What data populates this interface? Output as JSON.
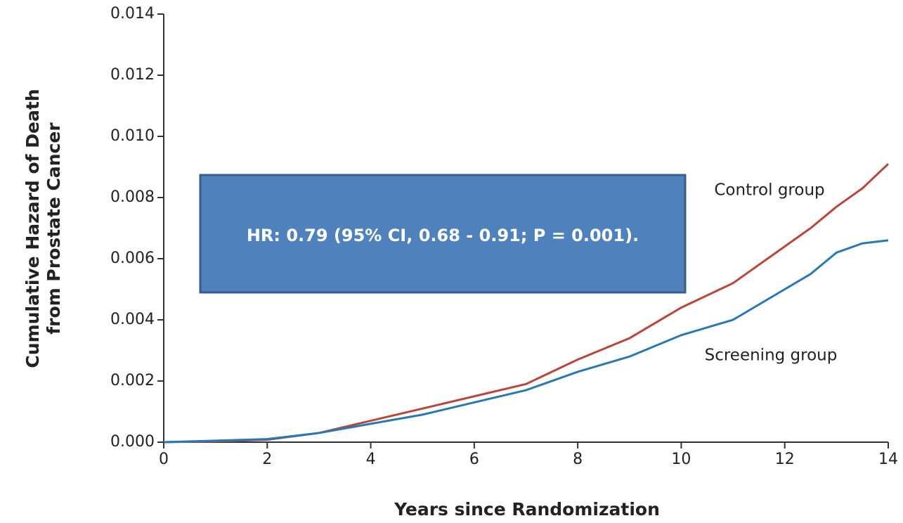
{
  "chart_data": {
    "type": "line",
    "xlabel": "Years since Randomization",
    "ylabel": [
      "Cumulative Hazard of Death",
      "from Prostate Cancer"
    ],
    "annotations": [
      "HR: 0.79 (95% CI, 0.68 - 0.91; P = 0.001).",
      "Control group",
      "Screening group"
    ],
    "x": [
      0,
      1,
      2,
      3,
      4,
      5,
      6,
      7,
      8,
      9,
      10,
      11,
      12,
      12.5,
      13,
      13.5,
      14
    ],
    "series": [
      {
        "name": "Control group",
        "color": "#b8473b",
        "values": [
          0,
          3e-05,
          8e-05,
          0.0003,
          0.0007,
          0.0011,
          0.0015,
          0.0019,
          0.0027,
          0.0034,
          0.0044,
          0.0052,
          0.0064,
          0.007,
          0.0077,
          0.0083,
          0.0091
        ]
      },
      {
        "name": "Screening group",
        "color": "#2a78b3",
        "values": [
          0,
          5e-05,
          0.0001,
          0.0003,
          0.0006,
          0.0009,
          0.0013,
          0.0017,
          0.0023,
          0.0028,
          0.0035,
          0.004,
          0.005,
          0.0055,
          0.0062,
          0.0065,
          0.0066
        ]
      }
    ],
    "xlim": [
      0,
      14
    ],
    "xticks": [
      0,
      2,
      4,
      6,
      8,
      10,
      12,
      14
    ],
    "ylim": [
      0,
      0.014
    ],
    "yticks": [
      {
        "value": 0,
        "label": "0.000"
      },
      {
        "value": 0.002,
        "label": "0.002"
      },
      {
        "value": 0.004,
        "label": "0.004"
      },
      {
        "value": 0.006,
        "label": "0.006"
      },
      {
        "value": 0.008,
        "label": "0.008"
      },
      {
        "value": 0.01,
        "label": "0.010"
      },
      {
        "value": 0.012,
        "label": "0.012"
      },
      {
        "value": 0.014,
        "label": "0.014"
      }
    ]
  }
}
